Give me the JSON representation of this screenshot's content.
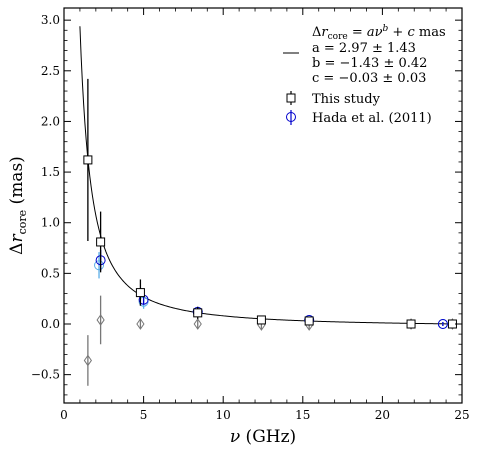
{
  "chart_data": {
    "type": "scatter",
    "xlabel": "ν (GHz)",
    "ylabel": "Δr_core (mas)",
    "xlim": [
      0,
      25
    ],
    "ylim": [
      -0.78,
      3.12
    ],
    "x_ticks": [
      0,
      5,
      10,
      15,
      20,
      25
    ],
    "y_ticks": [
      -0.5,
      0.0,
      0.5,
      1.0,
      1.5,
      2.0,
      2.5,
      3.0
    ],
    "x_tick_labels": [
      "0",
      "5",
      "10",
      "15",
      "20",
      "25"
    ],
    "y_tick_labels": [
      "−0.5",
      "0.0",
      "0.5",
      "1.0",
      "1.5",
      "2.0",
      "2.5",
      "3.0"
    ],
    "grid": false,
    "legend_position": "top-right",
    "fit": {
      "type": "line",
      "function": "a*x^b + c",
      "a": 2.97,
      "b": -1.43,
      "c": -0.03,
      "x_range": [
        1.0,
        24.4
      ],
      "color": "#000000",
      "legend_lines": [
        "Δr_core = aν^b + c mas",
        "a = 2.97 ± 1.43",
        "b = −1.43 ± 0.42",
        "c = −0.03 ± 0.03"
      ]
    },
    "series": [
      {
        "name": "This study",
        "marker": "square",
        "color": "#000000",
        "x": [
          1.5,
          2.3,
          4.8,
          8.4,
          12.4,
          15.4,
          21.8,
          24.4
        ],
        "y": [
          1.62,
          0.81,
          0.31,
          0.11,
          0.04,
          0.03,
          0.0,
          0.0
        ],
        "yerr": [
          0.8,
          0.3,
          0.13,
          0.06,
          0.04,
          0.04,
          0.03,
          0.03
        ]
      },
      {
        "name": "Hada et al. (2011)",
        "marker": "circle",
        "color": "#0000cc",
        "x": [
          2.3,
          5.0,
          8.4,
          15.4,
          23.8
        ],
        "y": [
          0.63,
          0.24,
          0.12,
          0.04,
          0.0
        ],
        "yerr": [
          0.1,
          0.05,
          0.04,
          0.03,
          0.02
        ]
      },
      {
        "name": "",
        "marker": "circle",
        "color": "#5aaee8",
        "x": [
          2.2,
          5.0,
          8.4,
          15.4,
          23.8
        ],
        "y": [
          0.58,
          0.22,
          0.12,
          0.04,
          0.0
        ],
        "yerr": [
          0.13,
          0.07,
          0.05,
          0.03,
          0.02
        ]
      },
      {
        "name": "",
        "marker": "diamond",
        "color": "#777777",
        "x": [
          1.5,
          2.3,
          4.8,
          8.4,
          12.4,
          15.4,
          21.8,
          24.4
        ],
        "y": [
          -0.36,
          0.04,
          0.0,
          0.0,
          -0.01,
          -0.01,
          0.0,
          0.0
        ],
        "yerr": [
          0.25,
          0.24,
          0.05,
          0.05,
          0.04,
          0.04,
          0.03,
          0.03
        ]
      }
    ]
  }
}
